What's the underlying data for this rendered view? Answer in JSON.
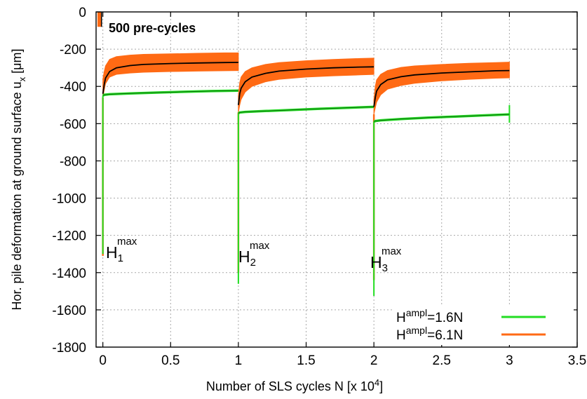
{
  "chart_data": {
    "type": "line",
    "xlabel": "Number of SLS cycles N [x 10",
    "xlabel_sup": "4",
    "xlabel_end": "]",
    "ylabel": "Hor. pile deformation at ground surface  u",
    "ylabel_sub": "x",
    "ylabel_end": " [μm]",
    "xlim": [
      -0.05,
      3.5
    ],
    "ylim": [
      -1800,
      0
    ],
    "x_ticks": [
      0,
      0.5,
      1,
      1.5,
      2,
      2.5,
      3,
      3.5
    ],
    "x_tick_labels": [
      "0",
      "0.5",
      "1",
      "1.5",
      "2",
      "2.5",
      "3",
      "3.5"
    ],
    "y_ticks": [
      0,
      -200,
      -400,
      -600,
      -800,
      -1000,
      -1200,
      -1400,
      -1600,
      -1800
    ],
    "y_tick_labels": [
      "0",
      "-200",
      "-400",
      "-600",
      "-800",
      "-1000",
      "-1200",
      "-1400",
      "-1600",
      "-1800"
    ],
    "grid": true,
    "legend_position": "bottom-right",
    "colors": {
      "green": "#22dd22",
      "orange": "#ff6a14",
      "mean": "#000000"
    },
    "series": [
      {
        "name": "H^ampl=1.6N",
        "legend_base": "H",
        "legend_sup": "ampl",
        "legend_rest": "=1.6N",
        "color": "#22dd22",
        "segments": [
          {
            "x": [
              0.0,
              0.01,
              0.05,
              0.2,
              0.4,
              0.6,
              0.8,
              1.0
            ],
            "y": [
              -450,
              -445,
              -442,
              -438,
              -433,
              -429,
              -425,
              -423
            ]
          },
          {
            "x": [
              1.0,
              1.01,
              1.05,
              1.2,
              1.4,
              1.6,
              1.8,
              2.0
            ],
            "y": [
              -545,
              -540,
              -537,
              -532,
              -526,
              -520,
              -515,
              -510
            ]
          },
          {
            "x": [
              2.0,
              2.01,
              2.05,
              2.2,
              2.4,
              2.6,
              2.8,
              3.0
            ],
            "y": [
              -590,
              -586,
              -582,
              -575,
              -568,
              -562,
              -556,
              -550
            ]
          }
        ],
        "spikes": [
          {
            "x": 0.0,
            "y": -1300
          },
          {
            "x": 1.0,
            "y": -1460
          },
          {
            "x": 2.0,
            "y": -1525
          }
        ]
      },
      {
        "name": "H^ampl=6.1N",
        "legend_base": "H",
        "legend_sup": "ampl",
        "legend_rest": "=6.1N",
        "color": "#ff6a14",
        "segments": [
          {
            "x": [
              0.0,
              0.01,
              0.02,
              0.05,
              0.1,
              0.2,
              0.3,
              0.5,
              0.7,
              0.9,
              1.0
            ],
            "upper": [
              -360,
              -320,
              -290,
              -255,
              -240,
              -232,
              -228,
              -225,
              -222,
              -220,
              -220
            ],
            "lower": [
              -460,
              -420,
              -385,
              -350,
              -335,
              -328,
              -324,
              -320,
              -318,
              -316,
              -315
            ]
          },
          {
            "x": [
              1.0,
              1.01,
              1.02,
              1.05,
              1.1,
              1.2,
              1.3,
              1.5,
              1.7,
              1.9,
              2.0
            ],
            "upper": [
              -450,
              -380,
              -350,
              -320,
              -300,
              -282,
              -272,
              -262,
              -255,
              -250,
              -248
            ],
            "lower": [
              -540,
              -500,
              -470,
              -430,
              -400,
              -375,
              -362,
              -350,
              -343,
              -338,
              -336
            ]
          },
          {
            "x": [
              2.0,
              2.01,
              2.02,
              2.05,
              2.1,
              2.2,
              2.3,
              2.5,
              2.7,
              2.9,
              3.0
            ],
            "upper": [
              -470,
              -400,
              -365,
              -335,
              -315,
              -298,
              -290,
              -282,
              -276,
              -272,
              -270
            ],
            "lower": [
              -550,
              -515,
              -485,
              -445,
              -415,
              -395,
              -383,
              -370,
              -362,
              -356,
              -354
            ]
          }
        ],
        "pre_cycles": {
          "x": [
            -0.04,
            -0.01
          ],
          "upper": 0,
          "lower": -80
        }
      },
      {
        "name": "mean",
        "color": "#000000",
        "segments": [
          {
            "x": [
              0.0,
              0.01,
              0.02,
              0.05,
              0.1,
              0.2,
              0.3,
              0.5,
              0.7,
              0.9,
              1.0
            ],
            "y": [
              -440,
              -390,
              -355,
              -320,
              -300,
              -288,
              -282,
              -277,
              -274,
              -272,
              -271
            ]
          },
          {
            "x": [
              1.0,
              1.01,
              1.02,
              1.05,
              1.1,
              1.2,
              1.3,
              1.5,
              1.7,
              1.9,
              2.0
            ],
            "y": [
              -500,
              -440,
              -410,
              -375,
              -350,
              -330,
              -318,
              -307,
              -300,
              -296,
              -295
            ]
          },
          {
            "x": [
              2.0,
              2.01,
              2.02,
              2.05,
              2.1,
              2.2,
              2.3,
              2.5,
              2.7,
              2.9,
              3.0
            ],
            "y": [
              -510,
              -460,
              -425,
              -390,
              -365,
              -348,
              -338,
              -328,
              -322,
              -316,
              -315
            ]
          }
        ],
        "spikes": [
          {
            "x": 0.0,
            "y": -1310
          },
          {
            "x": 1.0,
            "y": -1400
          },
          {
            "x": 2.0,
            "y": -1440
          }
        ]
      }
    ],
    "annotations": [
      {
        "text": "500 pre-cycles"
      },
      {
        "base": "H",
        "sub": "1",
        "sup": "max"
      },
      {
        "base": "H",
        "sub": "2",
        "sup": "max"
      },
      {
        "base": "H",
        "sub": "3",
        "sup": "max"
      }
    ]
  }
}
